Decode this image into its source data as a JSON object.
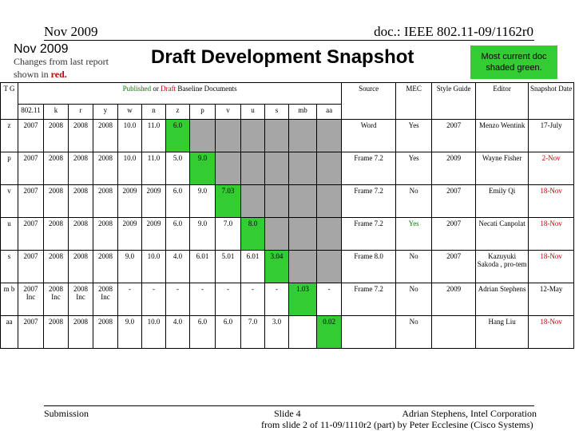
{
  "header": {
    "date": "Nov 2009",
    "doc": "doc.: IEEE 802.11-09/1162r0",
    "sub_date": "Nov 2009",
    "changes_prefix": "Changes from last report shown in",
    "changes_red": "red.",
    "title": "Draft Development Snapshot",
    "shaded_note": "Most current doc shaded green."
  },
  "table": {
    "tg_label": "T G",
    "baseline_prefix": "Published",
    "baseline_or": "or",
    "baseline_draft": "Draft",
    "baseline_suffix": "Baseline Documents",
    "columns": [
      "802.11",
      "k",
      "r",
      "y",
      "w",
      "n",
      "z",
      "p",
      "v",
      "u",
      "s",
      "mb",
      "aa"
    ],
    "right_headers": {
      "source": "Source",
      "mec": "MEC",
      "style": "Style Guide",
      "editor": "Editor",
      "snapshot": "Snapshot Date"
    },
    "rows": [
      {
        "tg": "z",
        "cells": [
          "2007",
          "2008",
          "2008",
          "2008",
          "10.0",
          "11.0",
          "6.0",
          "",
          "",
          "",
          "",
          "",
          ""
        ],
        "source": "Word",
        "mec": "Yes",
        "style": "2007",
        "editor": "Menzo Wentink",
        "date": "17-July"
      },
      {
        "tg": "p",
        "cells": [
          "2007",
          "2008",
          "2008",
          "2008",
          "10.0",
          "11.0",
          "5.0",
          "9.0",
          "",
          "",
          "",
          "",
          ""
        ],
        "source": "Frame 7.2",
        "mec": "Yes",
        "style": "2009",
        "editor": "Wayne Fisher",
        "date": "2-Nov"
      },
      {
        "tg": "v",
        "cells": [
          "2007",
          "2008",
          "2008",
          "2008",
          "2009",
          "2009",
          "6.0",
          "9.0",
          "7.03",
          "",
          "",
          "",
          ""
        ],
        "source": "Frame 7.2",
        "mec": "No",
        "style": "2007",
        "editor": "Emily Qi",
        "date": "18-Nov"
      },
      {
        "tg": "u",
        "cells": [
          "2007",
          "2008",
          "2008",
          "2008",
          "2009",
          "2009",
          "6.0",
          "9.0",
          "7.0",
          "8.0",
          "",
          "",
          ""
        ],
        "source": "Frame 7.2",
        "mec": "Yes",
        "style": "2007",
        "editor": "Necati Canpolat",
        "date": "18-Nov"
      },
      {
        "tg": "s",
        "cells": [
          "2007",
          "2008",
          "2008",
          "2008",
          "9.0",
          "10.0",
          "4.0",
          "6.01",
          "5.01",
          "6.01",
          "3.04",
          "",
          ""
        ],
        "source": "Frame 8.0",
        "mec": "No",
        "style": "2007",
        "editor": "Kazuyuki Sakoda , pro-tem",
        "date": "18-Nov"
      },
      {
        "tg": "m b",
        "cells": [
          "2007 Inc",
          "2008 Inc",
          "2008 Inc",
          "2008 Inc",
          "-",
          "-",
          "-",
          "-",
          "-",
          "-",
          "-",
          "1.03",
          "-"
        ],
        "source": "Frame 7.2",
        "mec": "No",
        "style": "2009",
        "editor": "Adrian Stephens",
        "date": "12-May"
      },
      {
        "tg": "aa",
        "cells": [
          "2007",
          "2008",
          "2008",
          "2008",
          "9.0",
          "10.0",
          "4.0",
          "6.0",
          "6.0",
          "7.0",
          "3.0",
          "",
          "0.02"
        ],
        "source": "",
        "mec": "No",
        "style": "",
        "editor": "Hang Liu",
        "date": "18-Nov"
      }
    ]
  },
  "footer": {
    "submission": "Submission",
    "slide": "Slide 4",
    "author": "Adrian Stephens, Intel Corporation",
    "from_slide": "from slide 2 of 11-09/1110r2 (part) by Peter Ecclesine (Cisco Systems)"
  },
  "colors": {
    "green": "#33cc33",
    "gray": "#a6a6a6",
    "red": "#c00000"
  }
}
